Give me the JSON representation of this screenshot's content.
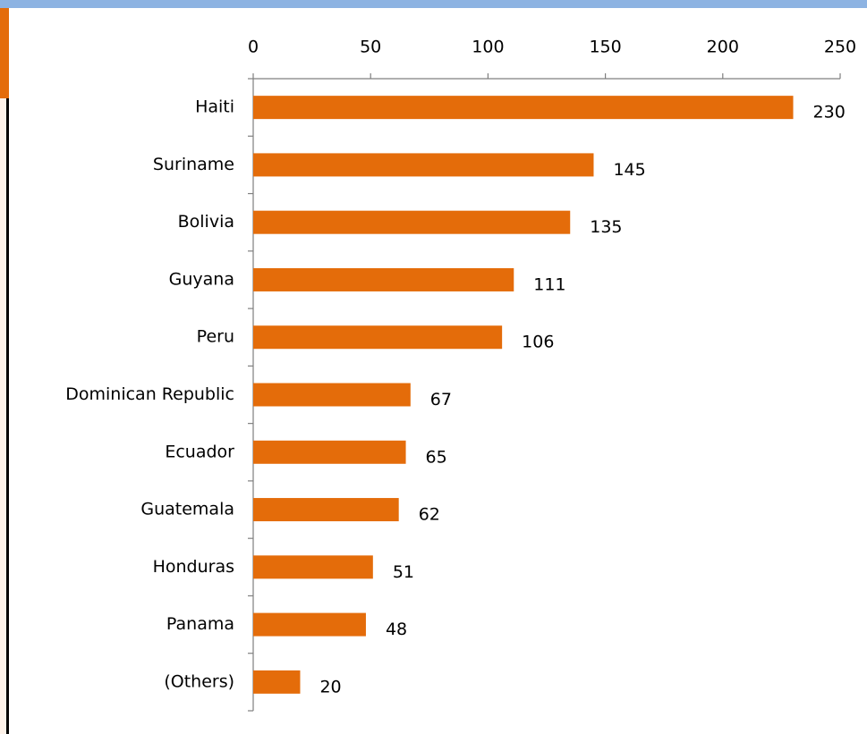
{
  "chart_data": {
    "type": "bar",
    "orientation": "horizontal",
    "categories": [
      "Haiti",
      "Suriname",
      "Bolivia",
      "Guyana",
      "Peru",
      "Dominican Republic",
      "Ecuador",
      "Guatemala",
      "Honduras",
      "Panama",
      "(Others)"
    ],
    "values": [
      230,
      145,
      135,
      111,
      106,
      67,
      65,
      62,
      51,
      48,
      20
    ],
    "color": "#e46c0a",
    "xlim": [
      0,
      250
    ],
    "xticks": [
      0,
      50,
      100,
      150,
      200,
      250
    ],
    "grid": false
  }
}
